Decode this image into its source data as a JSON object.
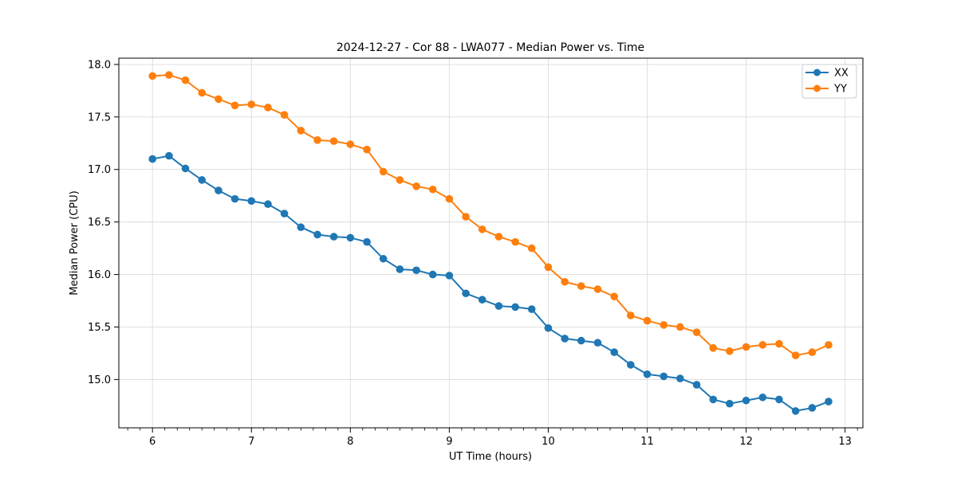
{
  "chart_data": {
    "type": "line",
    "title": "2024-12-27 - Cor 88 - LWA077 - Median Power vs. Time",
    "xlabel": "UT Time (hours)",
    "ylabel": "Median Power (CPU)",
    "xlim": [
      5.66,
      13.18
    ],
    "ylim": [
      14.54,
      18.06
    ],
    "grid": "major-only",
    "legend_position": "upper-right",
    "x_ticks": {
      "values": [
        6,
        7,
        8,
        9,
        10,
        11,
        12,
        13
      ],
      "labels": [
        "6",
        "7",
        "8",
        "9",
        "10",
        "11",
        "12",
        "13"
      ]
    },
    "x_minor_tick_step": 0.125,
    "y_ticks": {
      "values": [
        15.0,
        15.5,
        16.0,
        16.5,
        17.0,
        17.5,
        18.0
      ],
      "labels": [
        "15.0",
        "15.5",
        "16.0",
        "16.5",
        "17.0",
        "17.5",
        "18.0"
      ]
    },
    "x": [
      6.0,
      6.167,
      6.333,
      6.5,
      6.667,
      6.833,
      7.0,
      7.167,
      7.333,
      7.5,
      7.667,
      7.833,
      8.0,
      8.167,
      8.333,
      8.5,
      8.667,
      8.833,
      9.0,
      9.167,
      9.333,
      9.5,
      9.667,
      9.833,
      10.0,
      10.167,
      10.333,
      10.5,
      10.667,
      10.833,
      11.0,
      11.167,
      11.333,
      11.5,
      11.667,
      11.833,
      12.0,
      12.167,
      12.333,
      12.5,
      12.667,
      12.833
    ],
    "series": [
      {
        "name": "XX",
        "color": "#1f77b4",
        "values": [
          17.1,
          17.13,
          17.01,
          16.9,
          16.8,
          16.72,
          16.7,
          16.67,
          16.58,
          16.45,
          16.38,
          16.36,
          16.35,
          16.31,
          16.15,
          16.05,
          16.04,
          16.0,
          15.99,
          15.82,
          15.76,
          15.7,
          15.69,
          15.67,
          15.49,
          15.39,
          15.37,
          15.35,
          15.26,
          15.14,
          15.05,
          15.03,
          15.01,
          14.95,
          14.81,
          14.77,
          14.8,
          14.83,
          14.81,
          14.7,
          14.73,
          14.79
        ]
      },
      {
        "name": "YY",
        "color": "#ff7f0e",
        "values": [
          17.89,
          17.9,
          17.85,
          17.73,
          17.67,
          17.61,
          17.62,
          17.59,
          17.52,
          17.37,
          17.28,
          17.27,
          17.24,
          17.19,
          16.98,
          16.9,
          16.84,
          16.81,
          16.72,
          16.55,
          16.43,
          16.36,
          16.31,
          16.25,
          16.07,
          15.93,
          15.89,
          15.86,
          15.79,
          15.61,
          15.56,
          15.52,
          15.5,
          15.45,
          15.3,
          15.27,
          15.31,
          15.33,
          15.34,
          15.23,
          15.26,
          15.33
        ]
      }
    ],
    "style": {
      "grid_color": "#dcdcdc",
      "spine_color": "#000000",
      "legend_border_color": "#cccccc",
      "legend_fill": "#ffffff"
    }
  }
}
